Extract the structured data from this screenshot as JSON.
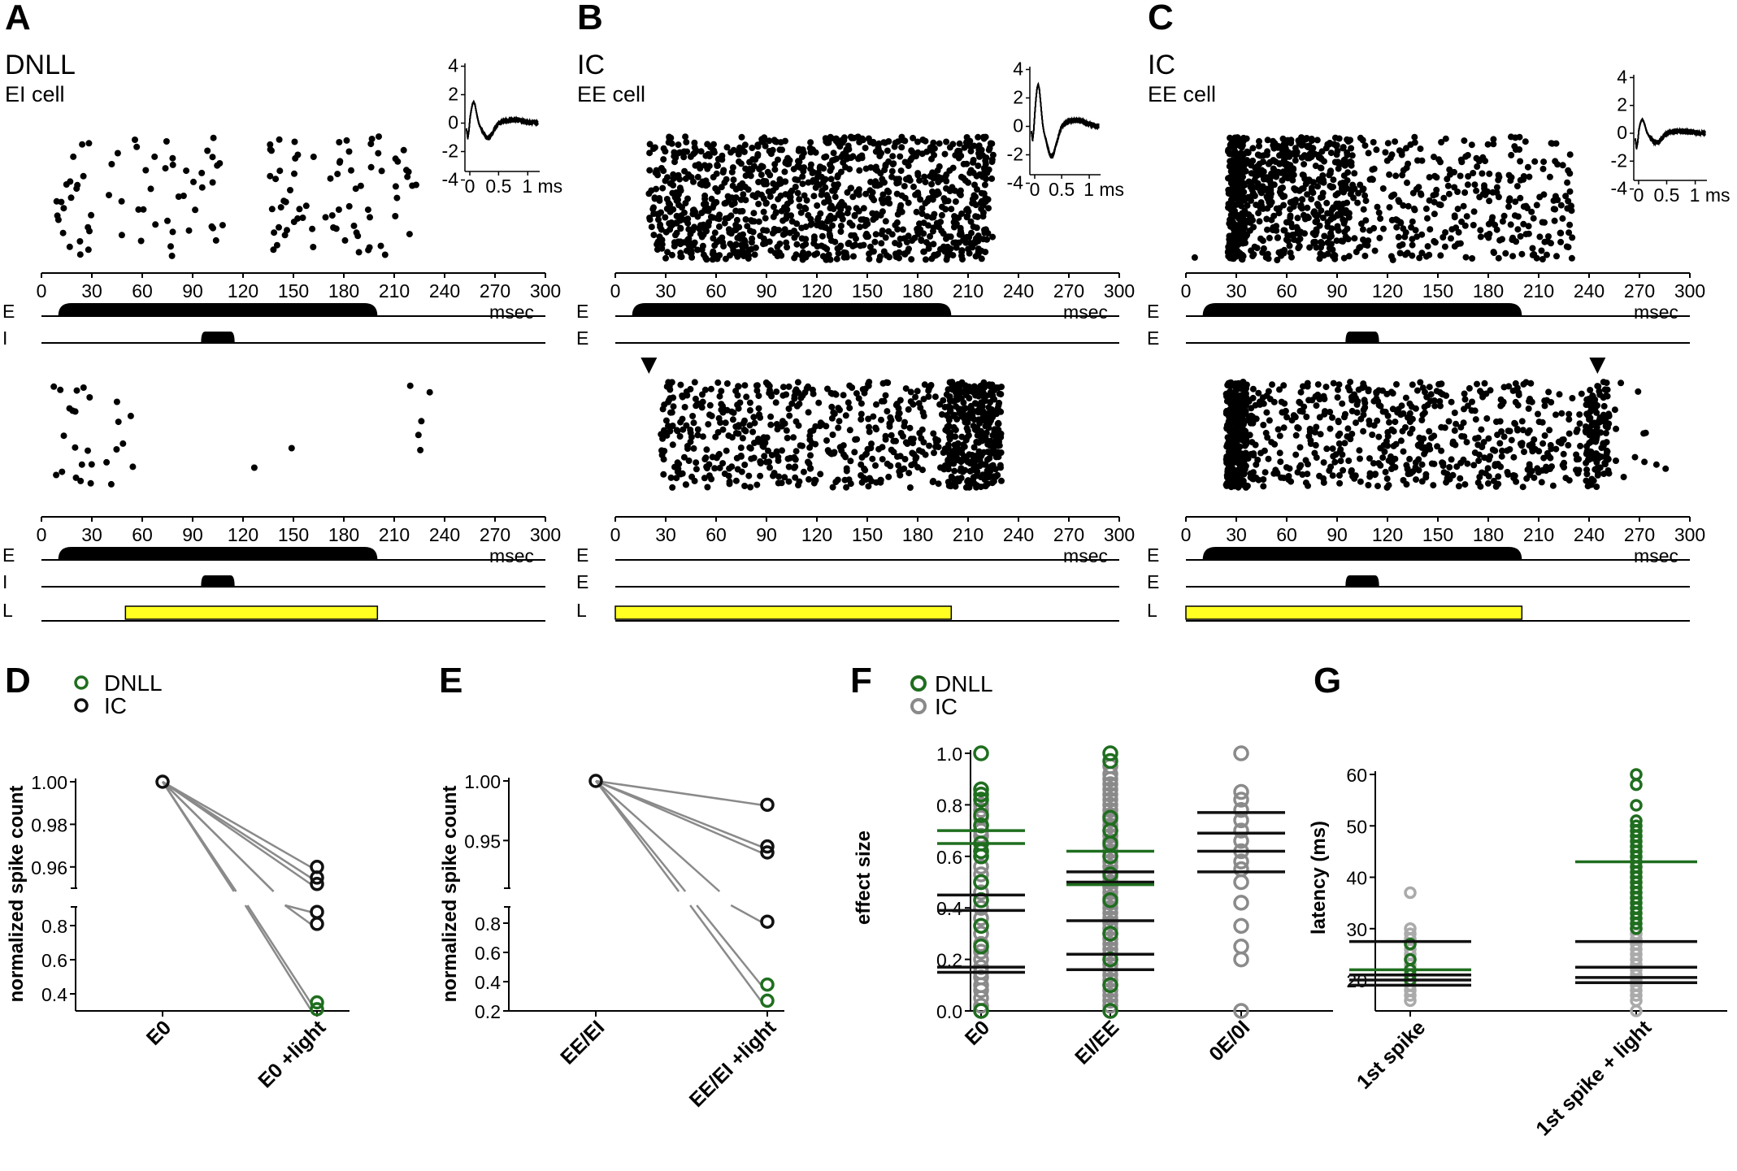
{
  "chart_data": [
    {
      "panel": "A",
      "type": "scatter",
      "subtype": "spike-raster",
      "title": "DNLL",
      "subtitle": "EI cell",
      "xlabel": "msec",
      "xlim": [
        0,
        300
      ],
      "xticks": [
        0,
        30,
        60,
        90,
        120,
        150,
        180,
        210,
        240,
        270,
        300
      ],
      "inset": {
        "yticks": [
          4,
          2,
          0,
          -2,
          -4
        ],
        "xticks": [
          "0",
          "0.5",
          "1 ms"
        ],
        "peak": 1.5
      },
      "stimulus_top": [
        {
          "label": "E",
          "start": 10,
          "end": 200
        },
        {
          "label": "I",
          "start": 95,
          "end": 115
        }
      ],
      "stimulus_bottom": [
        {
          "label": "E",
          "start": 10,
          "end": 200
        },
        {
          "label": "I",
          "start": 95,
          "end": 115
        },
        {
          "label": "L",
          "start": 50,
          "end": 200
        }
      ],
      "raster_top": {
        "spike_windows": [
          [
            7,
            30,
            22
          ],
          [
            40,
            110,
            40
          ],
          [
            135,
            225,
            75
          ]
        ]
      },
      "raster_bottom": {
        "spike_windows": [
          [
            7,
            30,
            18
          ],
          [
            38,
            55,
            8
          ],
          [
            125,
            150,
            2
          ],
          [
            218,
            232,
            5
          ]
        ]
      },
      "arrow_ms": null
    },
    {
      "panel": "B",
      "type": "scatter",
      "subtype": "spike-raster",
      "title": "IC",
      "subtitle": "EE cell",
      "xlabel": "msec",
      "xlim": [
        0,
        300
      ],
      "xticks": [
        0,
        30,
        60,
        90,
        120,
        150,
        180,
        210,
        240,
        270,
        300
      ],
      "inset": {
        "yticks": [
          4,
          2,
          0,
          -2,
          -4
        ],
        "xticks": [
          "0",
          "0.5",
          "1 ms"
        ],
        "peak": 3.0
      },
      "stimulus_top": [
        {
          "label": "E",
          "start": 10,
          "end": 200
        },
        {
          "label": "E",
          "start": 0,
          "end": 0
        }
      ],
      "stimulus_bottom": [
        {
          "label": "E",
          "start": 0,
          "end": 0
        },
        {
          "label": "E",
          "start": 0,
          "end": 0
        },
        {
          "label": "L",
          "start": 0,
          "end": 200
        }
      ],
      "raster_top": {
        "spike_windows": [
          [
            20,
            225,
            1100
          ]
        ]
      },
      "raster_bottom": {
        "spike_windows": [
          [
            27,
            230,
            600
          ],
          [
            198,
            230,
            220
          ]
        ]
      },
      "arrow_ms": 20
    },
    {
      "panel": "C",
      "type": "scatter",
      "subtype": "spike-raster",
      "title": "IC",
      "subtitle": "EE cell",
      "xlabel": "msec",
      "xlim": [
        0,
        300
      ],
      "xticks": [
        0,
        30,
        60,
        90,
        120,
        150,
        180,
        210,
        240,
        270,
        300
      ],
      "inset": {
        "yticks": [
          4,
          2,
          0,
          -2,
          -4
        ],
        "xticks": [
          "0",
          "0.5",
          "1 ms"
        ],
        "peak": 1.0
      },
      "stimulus_top": [
        {
          "label": "E",
          "start": 10,
          "end": 200
        },
        {
          "label": "E",
          "start": 95,
          "end": 115
        }
      ],
      "stimulus_bottom": [
        {
          "label": "E",
          "start": 10,
          "end": 200
        },
        {
          "label": "E",
          "start": 95,
          "end": 115
        },
        {
          "label": "L",
          "start": 0,
          "end": 200
        }
      ],
      "raster_top": {
        "spike_windows": [
          [
            25,
            35,
            240
          ],
          [
            35,
            100,
            450
          ],
          [
            100,
            230,
            320
          ],
          [
            3,
            8,
            1
          ]
        ]
      },
      "raster_bottom": {
        "spike_windows": [
          [
            24,
            36,
            300
          ],
          [
            36,
            210,
            500
          ],
          [
            210,
            240,
            60
          ],
          [
            238,
            252,
            130
          ],
          [
            252,
            290,
            12
          ]
        ]
      },
      "arrow_ms": 245
    },
    {
      "panel": "D",
      "type": "line",
      "subtype": "paired-points",
      "ylabel": "normalized spike count",
      "categories": [
        "E0",
        "E0 +light"
      ],
      "upper_ylim": [
        0.95,
        1.0
      ],
      "upper_yticks": [
        "1.00",
        "0.98",
        "0.96"
      ],
      "lower_ylim": [
        0.3,
        0.9
      ],
      "lower_yticks": [
        "0.8",
        "0.6",
        "0.4"
      ],
      "legend": [
        "DNLL",
        "IC"
      ],
      "series": [
        {
          "name": "IC",
          "values": [
            1.0,
            0.96
          ]
        },
        {
          "name": "IC",
          "values": [
            1.0,
            0.955
          ]
        },
        {
          "name": "IC",
          "values": [
            1.0,
            0.952
          ]
        },
        {
          "name": "IC",
          "values": [
            1.0,
            0.88
          ]
        },
        {
          "name": "IC",
          "values": [
            1.0,
            0.81
          ]
        },
        {
          "name": "DNLL",
          "values": [
            1.0,
            0.35
          ]
        },
        {
          "name": "DNLL",
          "values": [
            1.0,
            0.31
          ]
        }
      ]
    },
    {
      "panel": "E",
      "type": "line",
      "subtype": "paired-points",
      "ylabel": "normalized spike count",
      "categories": [
        "EE/EI",
        "EE/EI +light"
      ],
      "upper_ylim": [
        0.91,
        1.0
      ],
      "upper_yticks": [
        "1.00",
        "0.95"
      ],
      "lower_ylim": [
        0.2,
        0.9
      ],
      "lower_yticks": [
        "0.8",
        "0.6",
        "0.4",
        "0.2"
      ],
      "series": [
        {
          "name": "IC",
          "values": [
            1.0,
            0.98
          ]
        },
        {
          "name": "IC",
          "values": [
            1.0,
            0.945
          ]
        },
        {
          "name": "IC",
          "values": [
            1.0,
            0.94
          ]
        },
        {
          "name": "IC",
          "values": [
            1.0,
            0.81
          ]
        },
        {
          "name": "DNLL",
          "values": [
            1.0,
            0.38
          ]
        },
        {
          "name": "DNLL",
          "values": [
            1.0,
            0.27
          ]
        }
      ]
    },
    {
      "panel": "F",
      "type": "scatter",
      "subtype": "dot-plot",
      "ylabel": "effect size",
      "ylim": [
        0,
        1
      ],
      "yticks": [
        "1.0",
        "0.8",
        "0.6",
        "0.4",
        "0.2",
        "0.0"
      ],
      "legend": [
        "DNLL",
        "IC"
      ],
      "categories": [
        "E0",
        "EI/EE",
        "0E/0I"
      ],
      "groups": [
        {
          "category": "E0",
          "gray": [
            0,
            0.02,
            0.05,
            0.08,
            0.1,
            0.13,
            0.15,
            0.17,
            0.2,
            0.23,
            0.26,
            0.3,
            0.33,
            0.36,
            0.4,
            0.43,
            0.46,
            0.5,
            0.53,
            0.56,
            0.6,
            0.62,
            0.65,
            0.68,
            0.7,
            0.72,
            0.75,
            0.78,
            0.8
          ],
          "green": [
            1.0,
            0.86,
            0.84,
            0.82,
            0.76,
            0.72,
            0.65,
            0.62,
            0.6,
            0.5,
            0.43,
            0.33,
            0.25,
            0.0
          ],
          "lines_black": [
            0.45,
            0.39,
            0.17,
            0.15
          ],
          "lines_green": [
            0.7,
            0.65
          ]
        },
        {
          "category": "EI/EE",
          "gray": [
            0,
            0.02,
            0.04,
            0.06,
            0.08,
            0.1,
            0.12,
            0.14,
            0.16,
            0.18,
            0.2,
            0.22,
            0.24,
            0.26,
            0.28,
            0.3,
            0.32,
            0.34,
            0.36,
            0.38,
            0.4,
            0.42,
            0.44,
            0.46,
            0.48,
            0.5,
            0.52,
            0.54,
            0.56,
            0.58,
            0.6,
            0.62,
            0.64,
            0.66,
            0.68,
            0.7,
            0.72,
            0.74,
            0.76,
            0.78,
            0.8,
            0.82,
            0.84,
            0.86,
            0.88,
            0.9,
            0.92,
            0.95
          ],
          "green": [
            1.0,
            0.97,
            0.75,
            0.7,
            0.65,
            0.6,
            0.53,
            0.43,
            0.3,
            0.2,
            0.1,
            0.0
          ],
          "lines_black": [
            0.54,
            0.5,
            0.35,
            0.22,
            0.16
          ],
          "lines_green": [
            0.62,
            0.49
          ]
        },
        {
          "category": "0E/0I",
          "gray": [
            1.0,
            0.85,
            0.82,
            0.78,
            0.74,
            0.7,
            0.66,
            0.62,
            0.58,
            0.55,
            0.5,
            0.42,
            0.33,
            0.25,
            0.2,
            0.0
          ],
          "green": [],
          "lines_black": [
            0.77,
            0.69,
            0.62,
            0.54
          ],
          "lines_green": []
        }
      ]
    },
    {
      "panel": "G",
      "type": "scatter",
      "subtype": "dot-plot",
      "ylabel": "latency (ms)",
      "ylim": [
        14,
        60
      ],
      "yticks": [
        "60",
        "50",
        "40",
        "30",
        "20"
      ],
      "categories": [
        "1st spike",
        "1st spike + light"
      ],
      "groups": [
        {
          "category": "1st spike",
          "gray": [
            37,
            30,
            29,
            28,
            27,
            26,
            25,
            24,
            23,
            22,
            21,
            20,
            19,
            18,
            17,
            16
          ],
          "green": [
            27,
            24,
            22,
            21,
            20
          ],
          "lines_black": [
            27.5,
            21,
            20,
            19
          ],
          "lines_green": [
            22
          ]
        },
        {
          "category": "1st spike + light",
          "gray": [
            30,
            29,
            28,
            27,
            26,
            25,
            24,
            23,
            22,
            21,
            20,
            19,
            18,
            17,
            16,
            14
          ],
          "green": [
            60,
            58,
            54,
            51,
            50,
            49,
            48,
            47,
            46,
            45,
            44,
            43,
            42,
            41,
            40,
            39,
            38,
            37,
            36,
            35,
            34,
            33,
            32,
            31,
            30
          ],
          "lines_black": [
            27.5,
            22.5,
            20.5,
            19.5
          ],
          "lines_green": [
            43
          ]
        }
      ]
    }
  ],
  "stim_labels": [
    "E",
    "I",
    "L"
  ],
  "colors": {
    "dnll": "#1f6e1f",
    "ic": "#111111",
    "gray": "#8a8a8a",
    "light_bar": "#ffff22",
    "light_gray": "#aaaaaa"
  }
}
